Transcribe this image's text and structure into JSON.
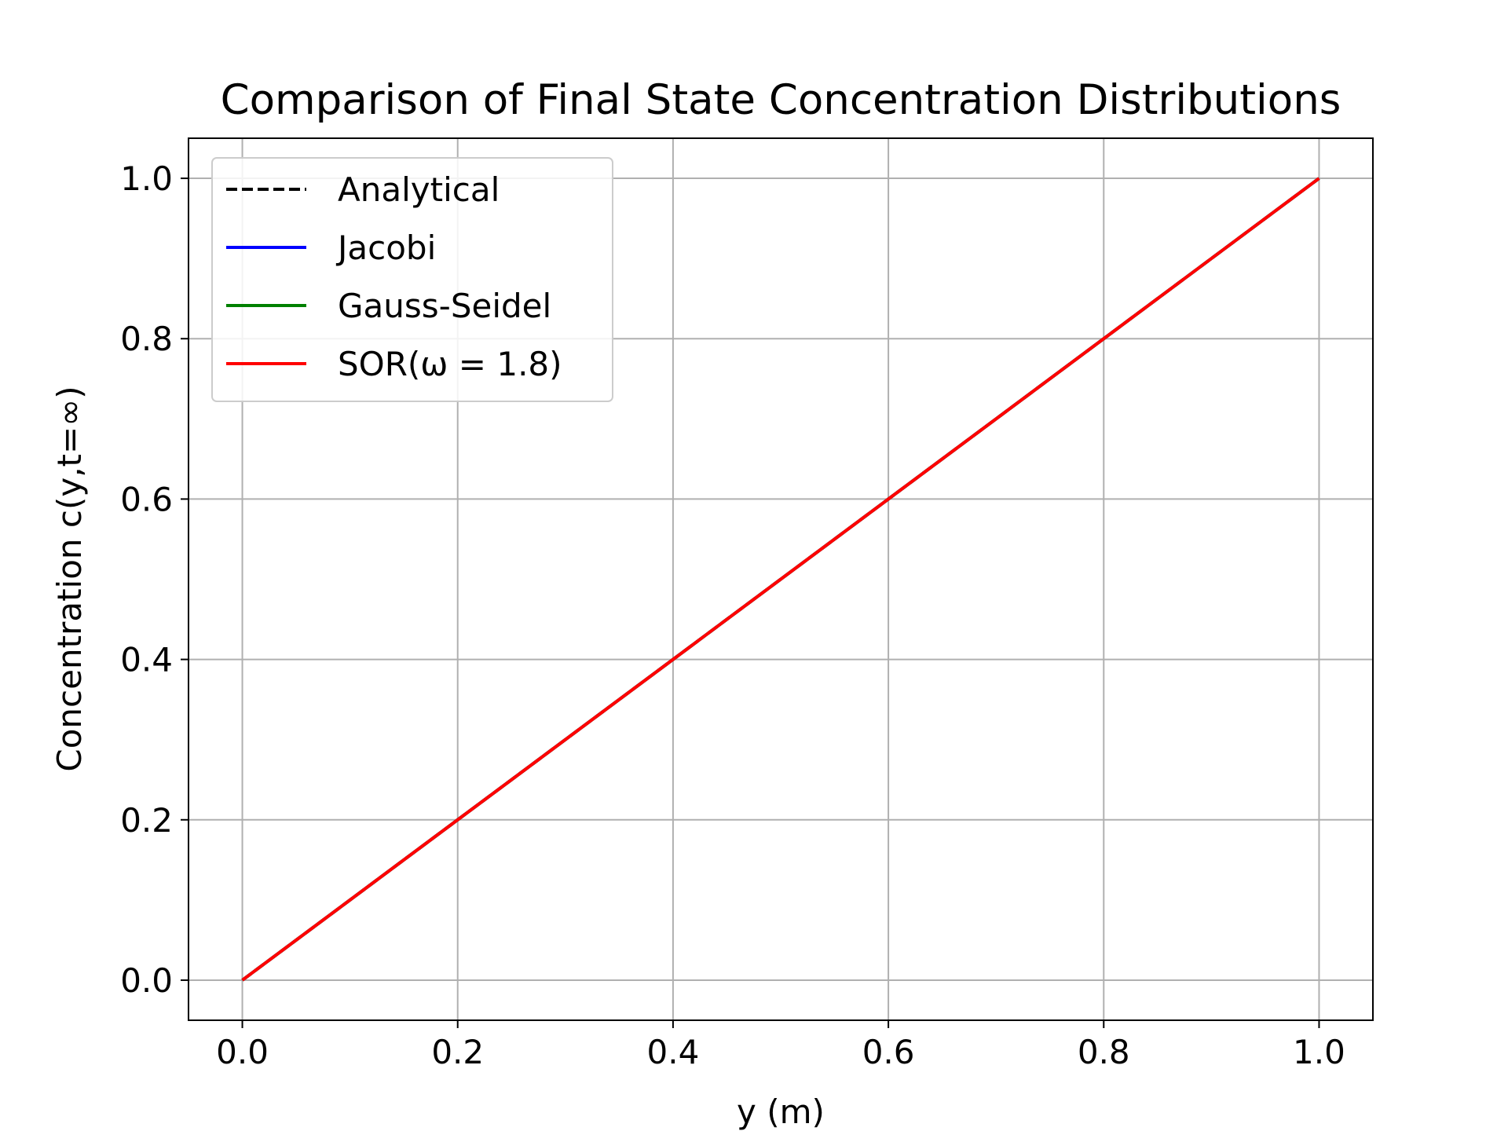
{
  "chart_data": {
    "type": "line",
    "title": "Comparison of Final State Concentration Distributions",
    "xlabel": "y (m)",
    "ylabel": "Concentration c(y,t=∞)",
    "xlim": [
      -0.05,
      1.05
    ],
    "ylim": [
      -0.05,
      1.05
    ],
    "xticks": [
      0.0,
      0.2,
      0.4,
      0.6,
      0.8,
      1.0
    ],
    "yticks": [
      0.0,
      0.2,
      0.4,
      0.6,
      0.8,
      1.0
    ],
    "xtick_labels": [
      "0.0",
      "0.2",
      "0.4",
      "0.6",
      "0.8",
      "1.0"
    ],
    "ytick_labels": [
      "0.0",
      "0.2",
      "0.4",
      "0.6",
      "0.8",
      "1.0"
    ],
    "grid": true,
    "legend_position": "upper-left",
    "series": [
      {
        "name": "Analytical",
        "color": "#000000",
        "style": "dashed",
        "x": [
          0.0,
          0.2,
          0.4,
          0.6,
          0.8,
          1.0
        ],
        "values": [
          0.0,
          0.2,
          0.4,
          0.6,
          0.8,
          1.0
        ]
      },
      {
        "name": "Jacobi",
        "color": "#0000ff",
        "style": "solid",
        "x": [
          0.0,
          0.2,
          0.4,
          0.6,
          0.8,
          1.0
        ],
        "values": [
          0.0,
          0.2,
          0.4,
          0.6,
          0.8,
          1.0
        ]
      },
      {
        "name": "Gauss-Seidel",
        "color": "#008000",
        "style": "solid",
        "x": [
          0.0,
          0.2,
          0.4,
          0.6,
          0.8,
          1.0
        ],
        "values": [
          0.0,
          0.2,
          0.4,
          0.6,
          0.8,
          1.0
        ]
      },
      {
        "name": "SOR(ω = 1.8)",
        "color": "#ff0000",
        "style": "solid",
        "x": [
          0.0,
          0.2,
          0.4,
          0.6,
          0.8,
          1.0
        ],
        "values": [
          0.0,
          0.2,
          0.4,
          0.6,
          0.8,
          1.0
        ]
      }
    ]
  }
}
